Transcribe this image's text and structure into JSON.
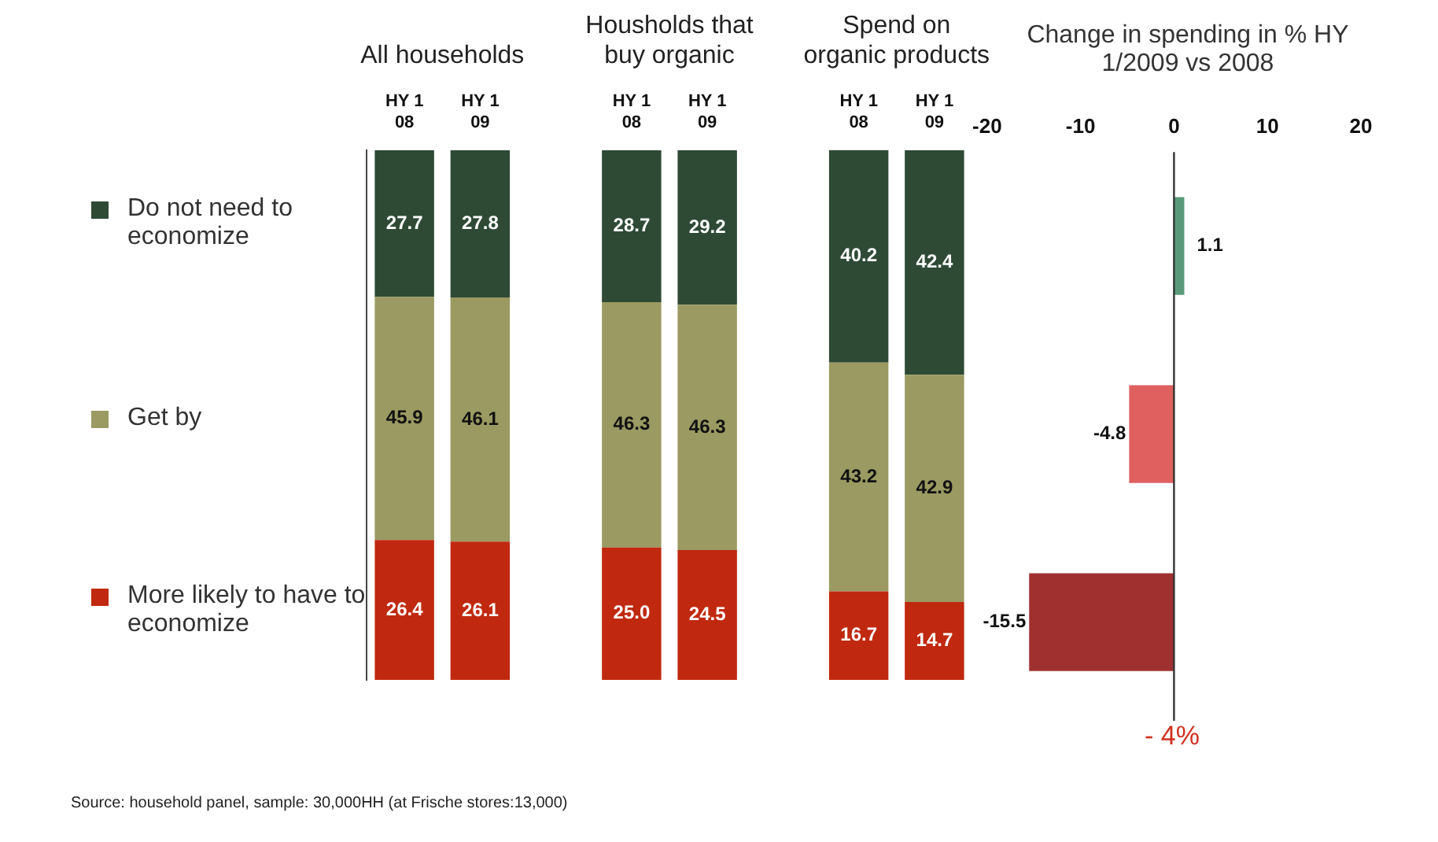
{
  "chart_data": [
    {
      "type": "bar",
      "stacked": true,
      "categories": [
        "HY 1 08",
        "HY 1 09",
        null,
        "HY 1 08",
        "HY 1 09",
        null,
        "HY 1 08",
        "HY 1 09"
      ],
      "series": [
        {
          "name": "More likely to have to economize",
          "color": "#c0290f",
          "values": [
            26.4,
            26.1,
            null,
            25.0,
            24.5,
            null,
            16.7,
            14.7
          ],
          "value_labels": [
            "26.4",
            "26.1",
            null,
            "25.0",
            "24.5",
            null,
            "16.7",
            "14.7"
          ]
        },
        {
          "name": "Get by",
          "color": "#9a9a62",
          "values": [
            45.9,
            46.1,
            null,
            46.3,
            46.3,
            null,
            43.2,
            42.9
          ]
        },
        {
          "name": "Do not need to economize",
          "color": "#2e4a35",
          "values": [
            27.7,
            27.8,
            null,
            28.7,
            29.2,
            null,
            40.2,
            42.4
          ]
        }
      ],
      "ylim": [
        0,
        100
      ],
      "data_labels": true,
      "legend": "left",
      "tick_labels": "x",
      "grid": false,
      "annotations": [
        "All households",
        "Housholds that buy organic",
        "Spend on organic products",
        "Source: household panel, sample: 30,000HH (at Frische stores:13,000)"
      ]
    },
    {
      "type": "bar",
      "orientation": "horizontal",
      "title": "Change in spending in % HY 1/2009 vs 2008",
      "categories": [
        null,
        null,
        null
      ],
      "values": [
        1.1,
        -4.8,
        -15.5
      ],
      "colors": [
        "#5a9a7a",
        "#e06060",
        "#a03030"
      ],
      "xlim": [
        -20,
        20
      ],
      "xticks": [
        -20,
        -10,
        0,
        10,
        20
      ],
      "data_labels": true,
      "tick_labels": "x",
      "grid": false,
      "legend": false,
      "ref_lines": [
        {
          "axis": "x",
          "value": 0,
          "color": "#333333"
        }
      ],
      "annotations": [
        "- 4%"
      ]
    }
  ]
}
